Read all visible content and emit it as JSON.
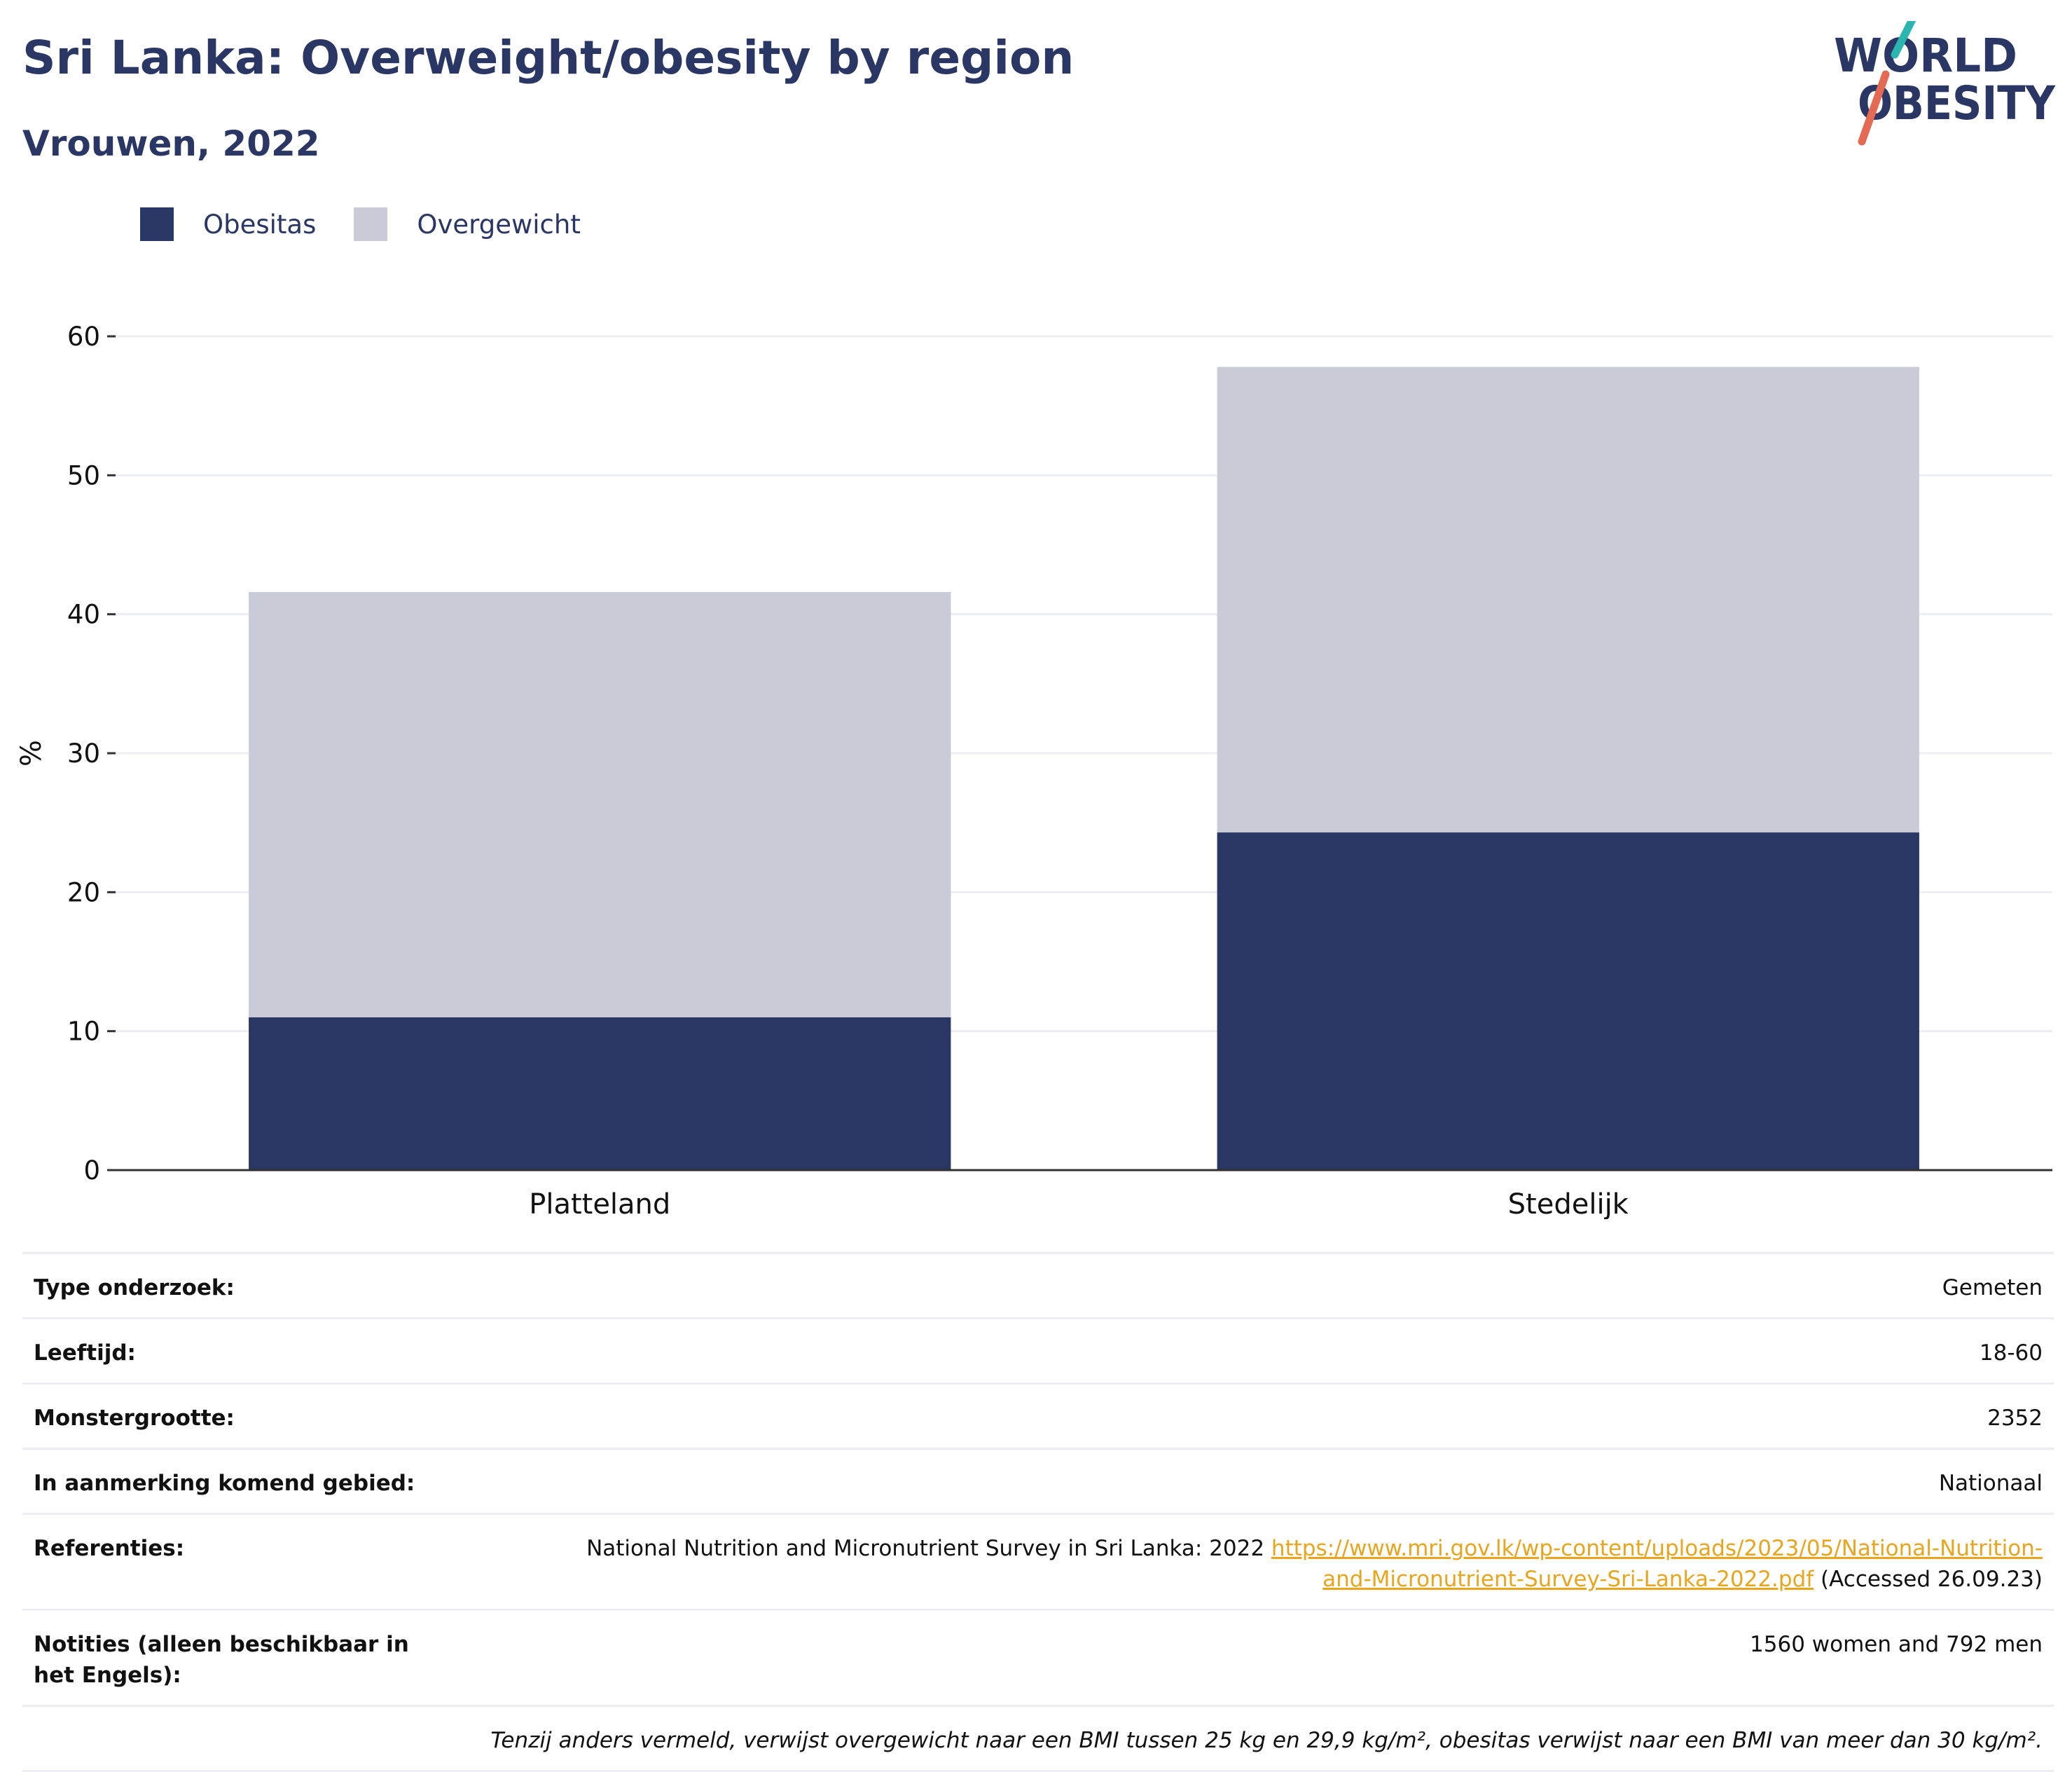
{
  "title": "Sri Lanka: Overweight/obesity by region",
  "subtitle": "Vrouwen, 2022",
  "logo": {
    "line1": "WORLD",
    "line2": "OBESITY",
    "accent_teal": "#2bb5b0",
    "accent_red": "#e56a54"
  },
  "colors": {
    "obesity": "#2a3663",
    "overweight": "#c9cbd6",
    "grid": "#eceef3",
    "axis": "#333333",
    "text": "#2a3663"
  },
  "legend": [
    {
      "label": "Obesitas",
      "color": "#2a3663"
    },
    {
      "label": "Overgewicht",
      "color": "#c9cbd6"
    }
  ],
  "chart_data": {
    "type": "bar",
    "stacked": true,
    "categories": [
      "Platteland",
      "Stedelijk"
    ],
    "series": [
      {
        "name": "Obesitas",
        "values": [
          11.0,
          24.3
        ]
      },
      {
        "name": "Overgewicht",
        "values": [
          30.6,
          33.5
        ]
      }
    ],
    "ylabel": "%",
    "ylim": [
      0,
      60
    ],
    "yticks": [
      0,
      10,
      20,
      30,
      40,
      50,
      60
    ],
    "grid": true,
    "legend_position": "top-left"
  },
  "meta": {
    "survey_type": {
      "label": "Type onderzoek:",
      "value": "Gemeten"
    },
    "age": {
      "label": "Leeftijd:",
      "value": "18-60"
    },
    "sample_size": {
      "label": "Monstergrootte:",
      "value": "2352"
    },
    "area": {
      "label": "In aanmerking komend gebied:",
      "value": "Nationaal"
    },
    "references": {
      "label": "Referenties:",
      "text": "National Nutrition and Micronutrient Survey in Sri Lanka: 2022",
      "link_line1": "https://www.mri.gov.lk/wp-content/uploads/2023/05/National-Nutrition-",
      "link_line2": "and-Micronutrient-Survey-Sri-Lanka-2022.pdf",
      "accessed": "(Accessed 26.09.23)"
    },
    "notes": {
      "label": "Notities (alleen beschikbaar in het Engels):",
      "value": "1560 women and 792 men"
    },
    "footnote": "Tenzij anders vermeld, verwijst overgewicht naar een BMI tussen 25 kg en 29,9 kg/m², obesitas verwijst naar een BMI van meer dan 30 kg/m²."
  }
}
